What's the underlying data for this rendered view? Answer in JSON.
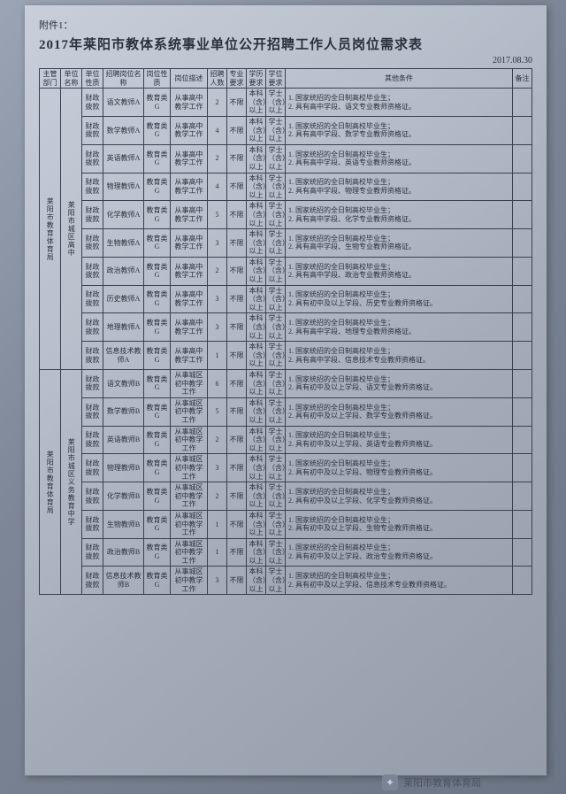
{
  "attachment_label": "附件1：",
  "title": "2017年莱阳市教体系统事业单位公开招聘工作人员岗位需求表",
  "date": "2017.08.30",
  "headers": {
    "dept": "主管部门",
    "unit": "单位名称",
    "funds": "单位性质",
    "pname": "招聘岗位名称",
    "pnat": "岗位性质",
    "pdesc": "岗位描述",
    "count": "招聘人数",
    "major": "专业要求",
    "edu": "学历要求",
    "degree": "学位要求",
    "other": "其他条件",
    "note": "备注"
  },
  "common": {
    "funds": "财政拨款",
    "pnat": "教育类G",
    "major": "不限",
    "edu": "本科（含）以上",
    "degree": "学士（含）以上"
  },
  "group1": {
    "dept": "莱阳市教育体育局",
    "unit": "莱阳市城区高中",
    "pdesc": "从事高中教学工作",
    "rows": [
      {
        "pname": "语文教师A",
        "count": "2",
        "other": "1. 国家统招的全日制高校毕业生；\n2. 具有高中学段、语文专业教师资格证。"
      },
      {
        "pname": "数学教师A",
        "count": "4",
        "other": "1. 国家统招的全日制高校毕业生；\n2. 具有高中学段、数学专业教师资格证。"
      },
      {
        "pname": "英语教师A",
        "count": "2",
        "other": "1. 国家统招的全日制高校毕业生；\n2. 具有高中学段、英语专业教师资格证。"
      },
      {
        "pname": "物理教师A",
        "count": "4",
        "other": "1. 国家统招的全日制高校毕业生；\n2. 具有高中学段、物理专业教师资格证。"
      },
      {
        "pname": "化学教师A",
        "count": "5",
        "other": "1. 国家统招的全日制高校毕业生；\n2. 具有高中学段、化学专业教师资格证。"
      },
      {
        "pname": "生物教师A",
        "count": "3",
        "other": "1. 国家统招的全日制高校毕业生；\n2. 具有高中学段、生物专业教师资格证。"
      },
      {
        "pname": "政治教师A",
        "count": "2",
        "other": "1. 国家统招的全日制高校毕业生；\n2. 具有高中学段、政治专业教师资格证。"
      },
      {
        "pname": "历史教师A",
        "count": "3",
        "other": "1. 国家统招的全日制高校毕业生；\n2. 具有初中及以上学段、历史专业教师资格证。"
      },
      {
        "pname": "地理教师A",
        "count": "3",
        "other": "1. 国家统招的全日制高校毕业生；\n2. 具有高中学段、地理专业教师资格证。"
      },
      {
        "pname": "信息技术教师A",
        "count": "1",
        "other": "1. 国家统招的全日制高校毕业生；\n2. 具有高中学段、信息技术专业教师资格证。"
      }
    ]
  },
  "group2": {
    "dept": "莱阳市教育体育局",
    "unit": "莱阳市城区义务教育中学",
    "pdesc": "从事城区初中教学工作",
    "rows": [
      {
        "pname": "语文教师B",
        "count": "6",
        "other": "1. 国家统招的全日制高校毕业生；\n2. 具有初中及以上学段、语文专业教师资格证。"
      },
      {
        "pname": "数学教师B",
        "count": "5",
        "other": "1. 国家统招的全日制高校毕业生；\n2. 具有初中及以上学段、数学专业教师资格证。"
      },
      {
        "pname": "英语教师B",
        "count": "2",
        "other": "1. 国家统招的全日制高校毕业生；\n2. 具有初中及以上学段、英语专业教师资格证。"
      },
      {
        "pname": "物理教师B",
        "count": "3",
        "other": "1. 国家统招的全日制高校毕业生；\n2. 具有初中及以上学段、物理专业教师资格证。"
      },
      {
        "pname": "化学教师B",
        "count": "2",
        "other": "1. 国家统招的全日制高校毕业生；\n2. 具有初中及以上学段、化学专业教师资格证。"
      },
      {
        "pname": "生物教师B",
        "count": "1",
        "other": "1. 国家统招的全日制高校毕业生；\n2. 具有初中及以上学段、生物专业教师资格证。"
      },
      {
        "pname": "政治教师B",
        "count": "1",
        "other": "1. 国家统招的全日制高校毕业生；\n2. 具有初中及以上学段、政治专业教师资格证。"
      },
      {
        "pname": "信息技术教师B",
        "count": "3",
        "other": "1. 国家统招的全日制高校毕业生；\n2. 具有初中及以上学段、信息技术专业教师资格证。"
      }
    ]
  },
  "footer_brand": "莱阳市教育体育局"
}
